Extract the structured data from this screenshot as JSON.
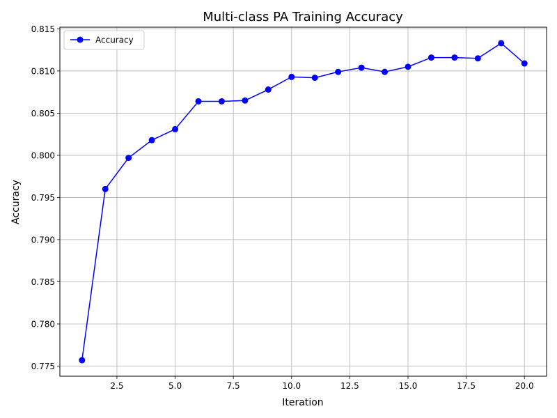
{
  "chart_data": {
    "type": "line",
    "title": "Multi-class PA Training Accuracy",
    "xlabel": "Iteration",
    "ylabel": "Accuracy",
    "xlim": [
      0.05,
      20.95
    ],
    "ylim": [
      0.7738,
      0.8152
    ],
    "x_ticks": [
      2.5,
      5.0,
      7.5,
      10.0,
      12.5,
      15.0,
      17.5,
      20.0
    ],
    "x_tick_labels": [
      "2.5",
      "5.0",
      "7.5",
      "10.0",
      "12.5",
      "15.0",
      "17.5",
      "20.0"
    ],
    "y_ticks": [
      0.775,
      0.78,
      0.785,
      0.79,
      0.795,
      0.8,
      0.805,
      0.81,
      0.815
    ],
    "y_tick_labels": [
      "0.775",
      "0.780",
      "0.785",
      "0.790",
      "0.795",
      "0.800",
      "0.805",
      "0.810",
      "0.815"
    ],
    "grid": true,
    "legend_position": "top-left",
    "series": [
      {
        "name": "Accuracy",
        "color": "#0000ff",
        "marker": "circle",
        "x": [
          1,
          2,
          3,
          4,
          5,
          6,
          7,
          8,
          9,
          10,
          11,
          12,
          13,
          14,
          15,
          16,
          17,
          18,
          19,
          20
        ],
        "values": [
          0.7757,
          0.796,
          0.7997,
          0.8018,
          0.8031,
          0.8064,
          0.8064,
          0.8065,
          0.8078,
          0.8093,
          0.8092,
          0.8099,
          0.8104,
          0.8099,
          0.8105,
          0.8116,
          0.8116,
          0.8115,
          0.8133,
          0.8109
        ]
      }
    ]
  }
}
